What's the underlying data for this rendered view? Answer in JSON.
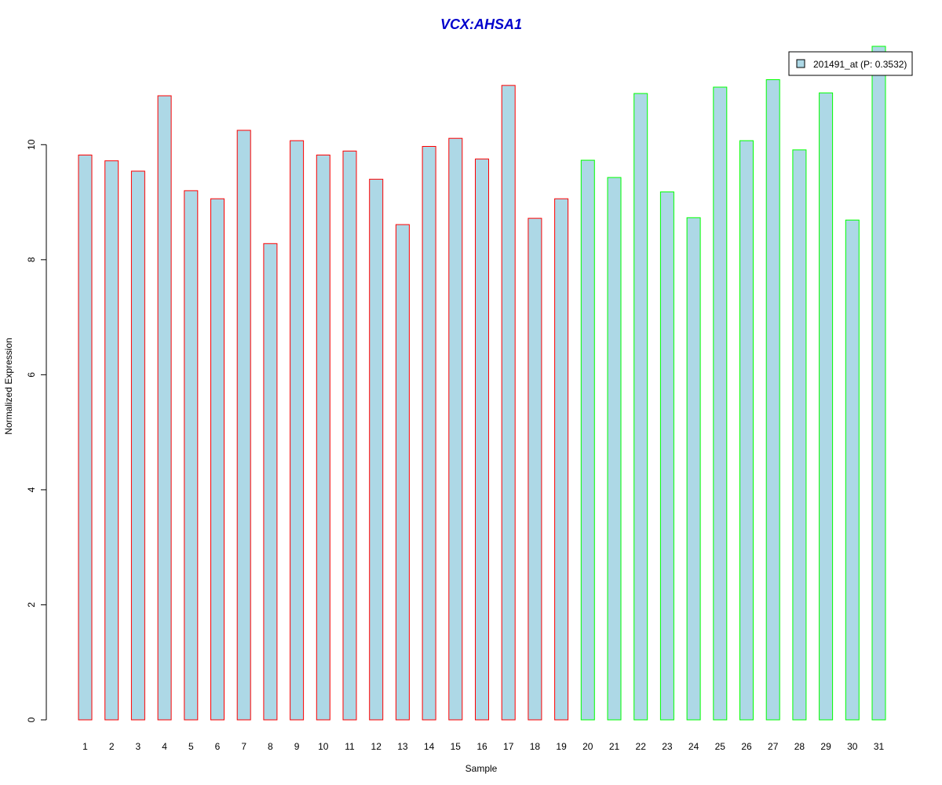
{
  "chart_data": {
    "type": "bar",
    "title": "VCX:AHSA1",
    "title_color": "#0000cc",
    "xlabel": "Sample",
    "ylabel": "Normalized Expression",
    "categories": [
      "1",
      "2",
      "3",
      "4",
      "5",
      "6",
      "7",
      "8",
      "9",
      "10",
      "11",
      "12",
      "13",
      "14",
      "15",
      "16",
      "17",
      "18",
      "19",
      "20",
      "21",
      "22",
      "23",
      "24",
      "25",
      "26",
      "27",
      "28",
      "29",
      "30",
      "31"
    ],
    "series": [
      {
        "name": "201491_at (P: 0.3532)",
        "values": [
          9.82,
          9.72,
          9.54,
          10.85,
          9.2,
          9.06,
          10.25,
          8.28,
          10.07,
          9.82,
          9.89,
          9.4,
          8.61,
          9.97,
          10.11,
          9.75,
          11.03,
          8.72,
          9.06,
          9.73,
          9.43,
          10.89,
          9.18,
          8.73,
          11.0,
          10.07,
          11.13,
          9.91,
          10.9,
          8.69,
          11.71
        ]
      }
    ],
    "groups": [
      1,
      1,
      1,
      1,
      1,
      1,
      1,
      1,
      1,
      1,
      1,
      1,
      1,
      1,
      1,
      1,
      1,
      1,
      1,
      2,
      2,
      2,
      2,
      2,
      2,
      2,
      2,
      2,
      2,
      2,
      2
    ],
    "group_colors": {
      "1": "#ff0000",
      "2": "#00ff00"
    },
    "fill_color": "#add8e6",
    "yticks": [
      0,
      2,
      4,
      6,
      8,
      10
    ],
    "ylim": [
      0,
      11.71
    ],
    "legend_position": "top-right",
    "grid": false
  }
}
